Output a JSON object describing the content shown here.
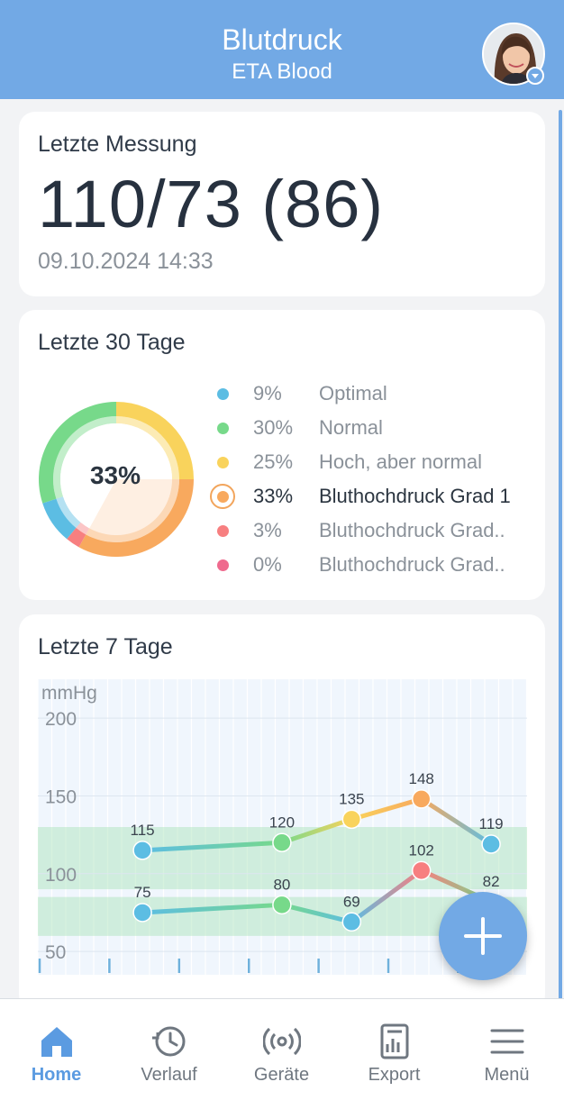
{
  "header": {
    "title": "Blutdruck",
    "subtitle": "ETA Blood"
  },
  "last_measurement": {
    "title": "Letzte Messung",
    "value": "110/73 (86)",
    "datetime": "09.10.2024 14:33"
  },
  "last30": {
    "title": "Letzte 30 Tage",
    "center_label": "33%",
    "categories": [
      {
        "pct": "9%",
        "label": "Optimal",
        "value": 9,
        "color": "#5cbde3",
        "active": false
      },
      {
        "pct": "30%",
        "label": "Normal",
        "value": 30,
        "color": "#77d98a",
        "active": false
      },
      {
        "pct": "25%",
        "label": "Hoch, aber normal",
        "value": 25,
        "color": "#f9d35c",
        "active": false
      },
      {
        "pct": "33%",
        "label": "Bluthochdruck Grad 1",
        "value": 33,
        "color": "#f8a95e",
        "active": true
      },
      {
        "pct": "3%",
        "label": "Bluthochdruck Grad..",
        "value": 3,
        "color": "#f77f80",
        "active": false
      },
      {
        "pct": "0%",
        "label": "Bluthochdruck Grad..",
        "value": 0,
        "color": "#ef6a8e",
        "active": false
      }
    ]
  },
  "last7": {
    "title": "Letzte 7 Tage",
    "chart_data": {
      "type": "line",
      "ylabel": "mmHg",
      "y_ticks": [
        200,
        150,
        100,
        50
      ],
      "ylim": [
        35,
        225
      ],
      "x_slots": 7,
      "normal_bands": [
        [
          90,
          130
        ],
        [
          60,
          85
        ]
      ],
      "series": [
        {
          "points": [
            {
              "slot": 1.5,
              "y": 115,
              "label": "115",
              "color": "#5cbde3"
            },
            {
              "slot": 3.5,
              "y": 120,
              "label": "120",
              "color": "#77d98a"
            },
            {
              "slot": 4.5,
              "y": 135,
              "label": "135",
              "color": "#f9d35c"
            },
            {
              "slot": 5.5,
              "y": 148,
              "label": "148",
              "color": "#f8a95e"
            },
            {
              "slot": 6.5,
              "y": 119,
              "label": "119",
              "color": "#5cbde3"
            }
          ]
        },
        {
          "points": [
            {
              "slot": 1.5,
              "y": 75,
              "label": "75",
              "color": "#5cbde3"
            },
            {
              "slot": 3.5,
              "y": 80,
              "label": "80",
              "color": "#77d98a"
            },
            {
              "slot": 4.5,
              "y": 69,
              "label": "69",
              "color": "#5cbde3"
            },
            {
              "slot": 5.5,
              "y": 102,
              "label": "102",
              "color": "#f77f80"
            },
            {
              "slot": 6.5,
              "y": 82,
              "label": "82",
              "color": "#77d98a"
            }
          ]
        }
      ]
    }
  },
  "nav": {
    "items": [
      {
        "label": "Home",
        "icon": "home-icon",
        "active": true
      },
      {
        "label": "Verlauf",
        "icon": "history-icon",
        "active": false
      },
      {
        "label": "Geräte",
        "icon": "devices-icon",
        "active": false
      },
      {
        "label": "Export",
        "icon": "export-icon",
        "active": false
      },
      {
        "label": "Menü",
        "icon": "menu-icon",
        "active": false
      }
    ]
  },
  "colors": {
    "accent": "#72a9e5",
    "nav_active": "#5b9be1"
  }
}
